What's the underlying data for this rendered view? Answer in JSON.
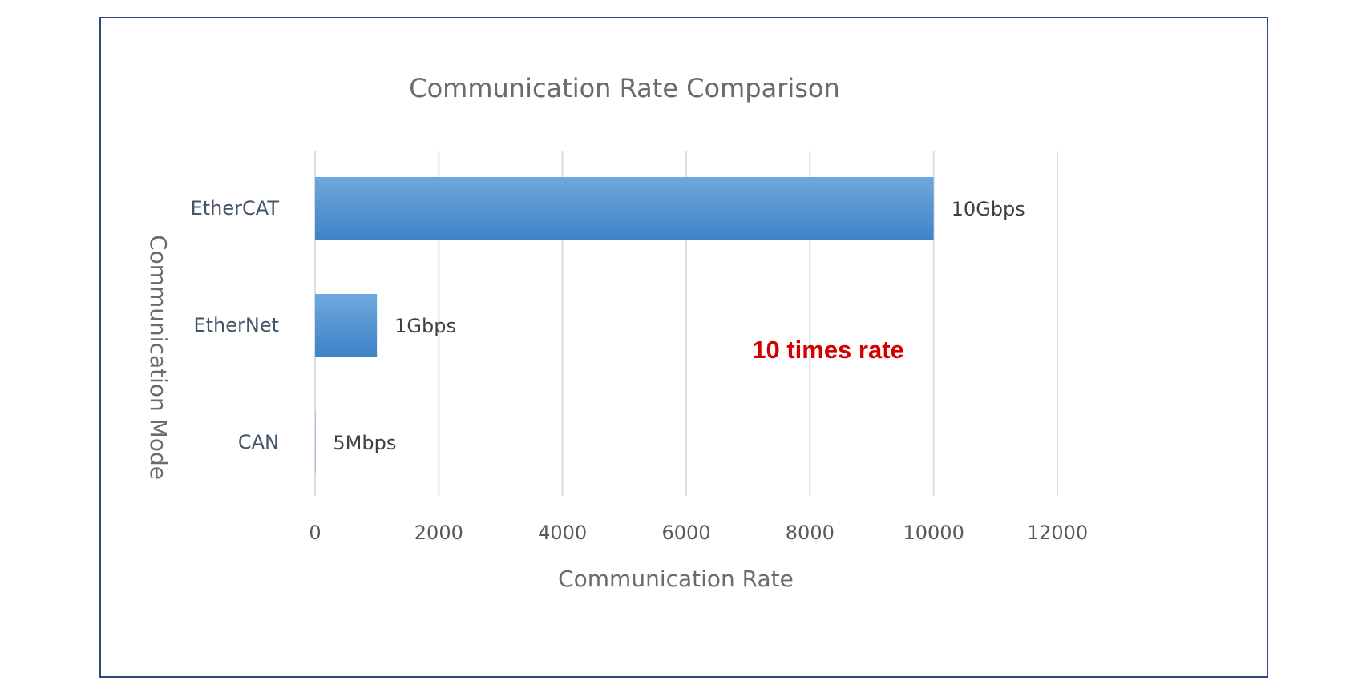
{
  "chart_data": {
    "type": "bar",
    "orientation": "horizontal",
    "title": "Communication Rate Comparison",
    "xlabel": "Communication Rate",
    "ylabel": "Communication Mode",
    "categories": [
      "EtherCAT",
      "EtherNet",
      "CAN"
    ],
    "values": [
      10000,
      1000,
      5
    ],
    "data_labels": [
      "10Gbps",
      "1Gbps",
      "5Mbps"
    ],
    "xlim": [
      0,
      12000
    ],
    "xticks": [
      0,
      2000,
      4000,
      6000,
      8000,
      10000,
      12000
    ],
    "xtick_labels": [
      "0",
      "2000",
      "4000",
      "6000",
      "8000",
      "10000",
      "12000"
    ],
    "grid": true,
    "legend": "none",
    "annotations": [
      {
        "text": "10 times rate",
        "color": "#d40000"
      }
    ],
    "colors": {
      "bar_top": "#6fa8dc",
      "bar_bottom": "#3f83c8",
      "frame": "#2f4a7a"
    }
  }
}
